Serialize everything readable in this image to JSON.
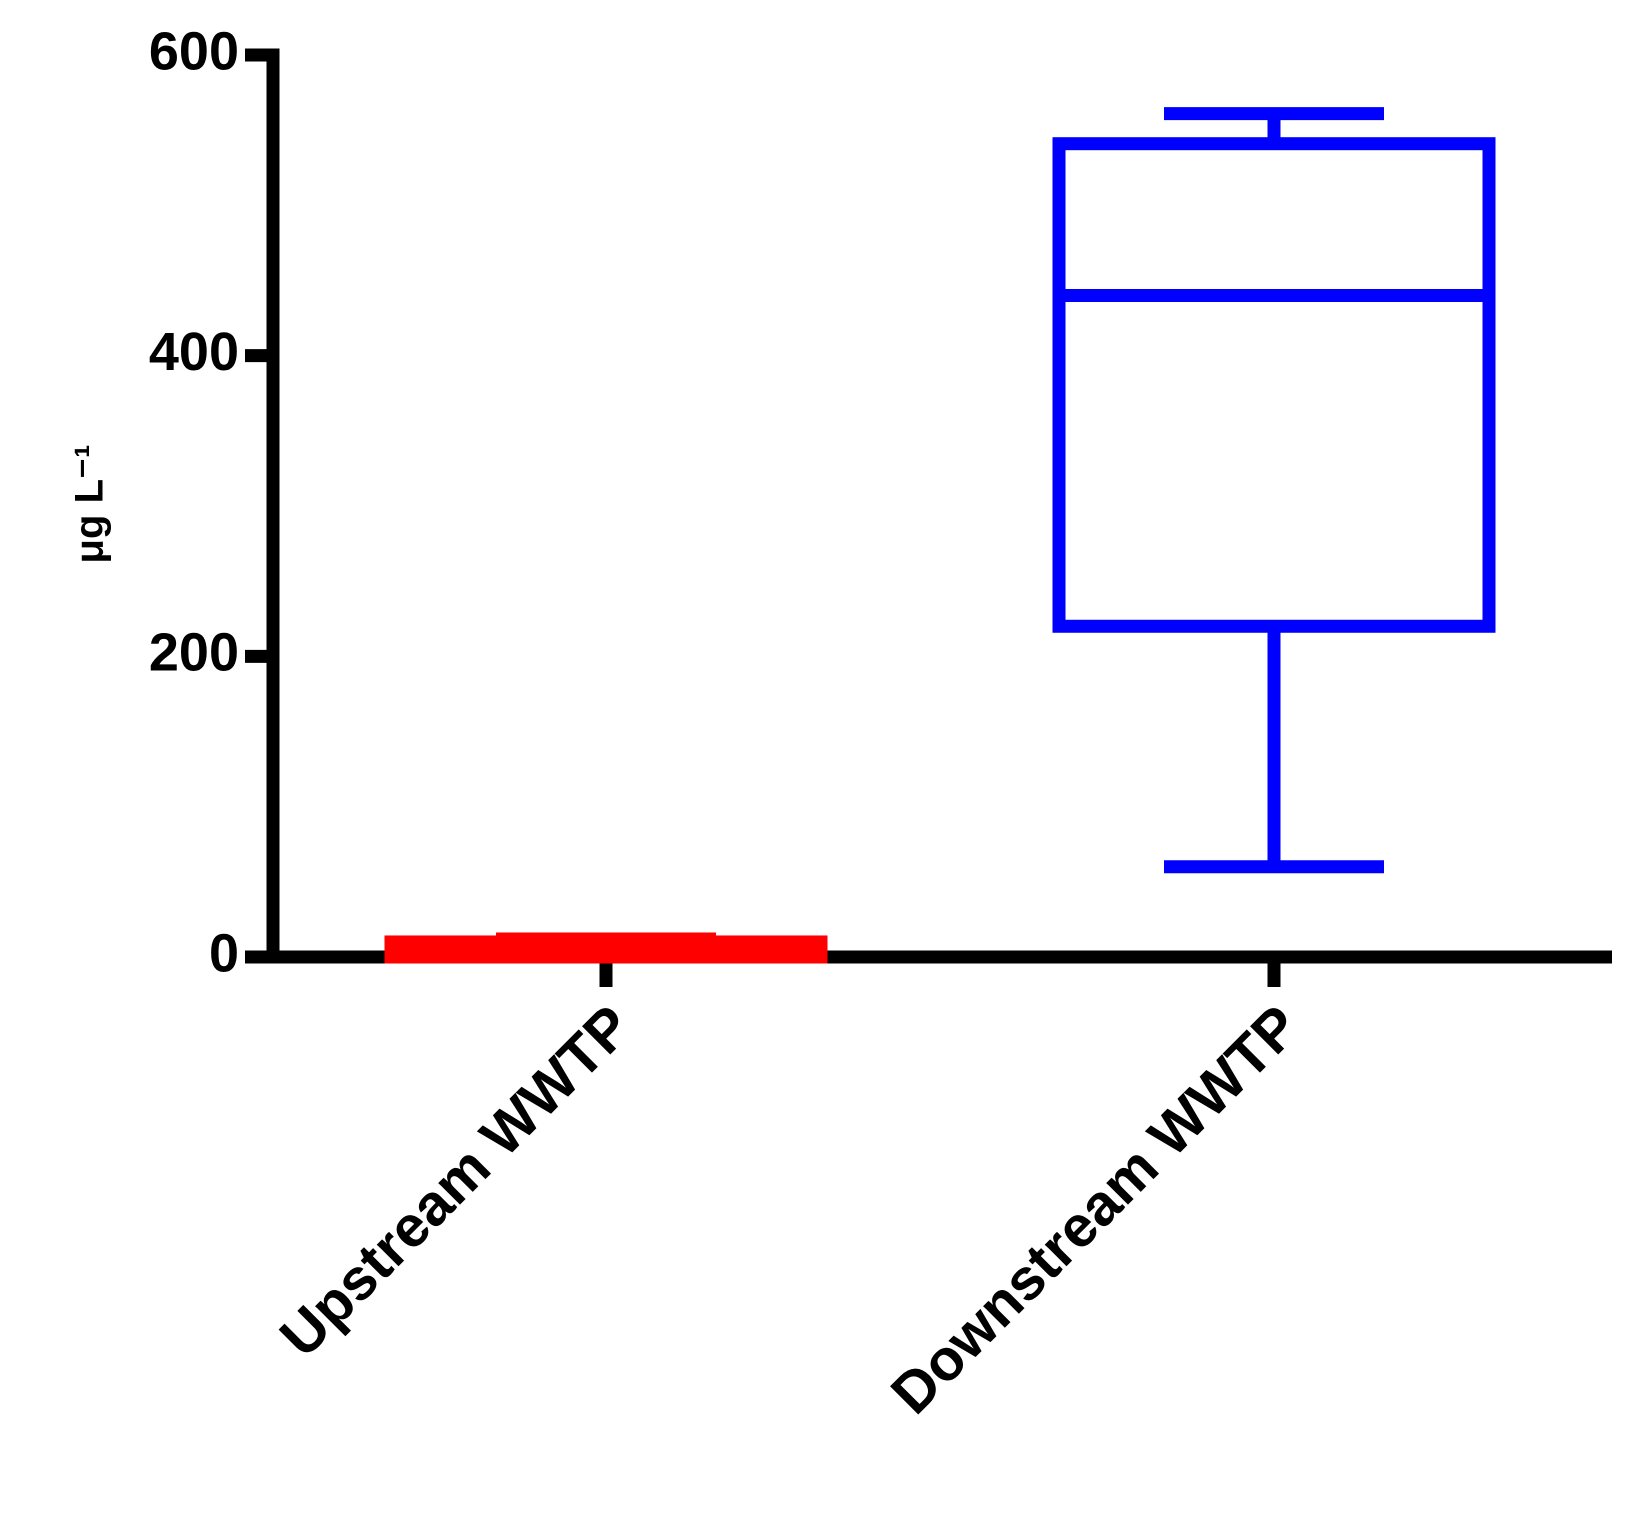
{
  "chart_data": {
    "type": "box",
    "y_label": "μg L⁻¹",
    "categories": [
      "Upstream WWTP",
      "Downstream WWTP"
    ],
    "colors": [
      "#ff0000",
      "#0000ff"
    ],
    "min": [
      0,
      60
    ],
    "q1": [
      0,
      220
    ],
    "median": [
      5,
      440
    ],
    "q3": [
      10,
      541
    ],
    "max": [
      12,
      561
    ],
    "ylim": [
      0,
      600
    ],
    "yticks": [
      0,
      200,
      400,
      600
    ]
  }
}
